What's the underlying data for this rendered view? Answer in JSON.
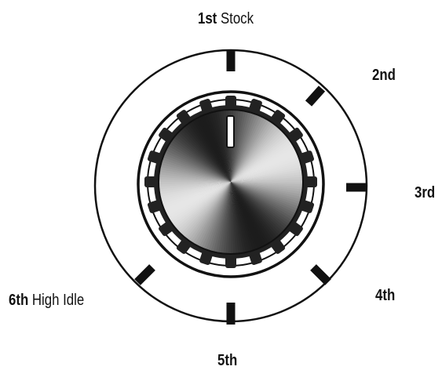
{
  "positions": [
    {
      "id": "1",
      "number": "1st",
      "text": "Stock"
    },
    {
      "id": "2",
      "number": "2nd",
      "text": ""
    },
    {
      "id": "3",
      "number": "3rd",
      "text": ""
    },
    {
      "id": "4",
      "number": "4th",
      "text": ""
    },
    {
      "id": "5",
      "number": "5th",
      "text": ""
    },
    {
      "id": "6",
      "number": "6th",
      "text": "High Idle"
    }
  ],
  "selected_position": "1st",
  "colors": {
    "outline": "#111111",
    "background": "#ffffff",
    "knob_metal_light": "#e6e6e6",
    "knob_metal_dark": "#1c1c1c",
    "indicator": "#ffffff"
  },
  "icons": {
    "knob": "rotary-selector-knob-icon"
  }
}
